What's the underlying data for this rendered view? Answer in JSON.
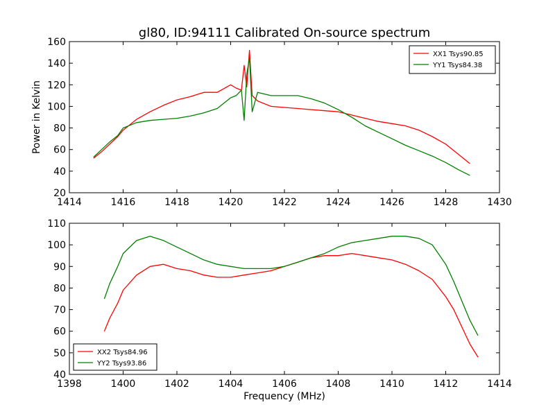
{
  "figure": {
    "title": "gl80, ID:94111 Calibrated On-source spectrum"
  },
  "chart_data": [
    {
      "type": "line",
      "title": "gl80, ID:94111 Calibrated On-source spectrum",
      "xlabel": "",
      "ylabel": "Power in Kelvin",
      "xlim": [
        1414,
        1430
      ],
      "ylim": [
        20,
        160
      ],
      "xticks": [
        1414,
        1416,
        1418,
        1420,
        1422,
        1424,
        1426,
        1428,
        1430
      ],
      "yticks": [
        20,
        40,
        60,
        80,
        100,
        120,
        140,
        160
      ],
      "grid": false,
      "legend_position": "top-right",
      "series": [
        {
          "name": "XX1 Tsys90.85",
          "color": "#ff0000",
          "x": [
            1414.9,
            1415.2,
            1415.5,
            1415.8,
            1416.0,
            1416.5,
            1417.0,
            1417.5,
            1418.0,
            1418.5,
            1419.0,
            1419.5,
            1420.0,
            1420.2,
            1420.4,
            1420.5,
            1420.6,
            1420.7,
            1420.8,
            1421.0,
            1421.5,
            1422.0,
            1422.5,
            1423.0,
            1423.5,
            1424.0,
            1424.5,
            1425.0,
            1425.5,
            1426.0,
            1426.5,
            1427.0,
            1427.5,
            1428.0,
            1428.5,
            1428.9
          ],
          "y": [
            52,
            58,
            65,
            72,
            78,
            88,
            95,
            101,
            106,
            109,
            113,
            113,
            120,
            117,
            115,
            138,
            118,
            152,
            110,
            105,
            100,
            99,
            98,
            97,
            96,
            95,
            92,
            89,
            86,
            84,
            82,
            78,
            72,
            65,
            55,
            47
          ]
        },
        {
          "name": "YY1 Tsys84.38",
          "color": "#008000",
          "x": [
            1414.9,
            1415.2,
            1415.5,
            1415.8,
            1416.0,
            1416.5,
            1417.0,
            1417.5,
            1418.0,
            1418.5,
            1419.0,
            1419.5,
            1420.0,
            1420.2,
            1420.4,
            1420.5,
            1420.6,
            1420.7,
            1420.8,
            1421.0,
            1421.5,
            1422.0,
            1422.5,
            1423.0,
            1423.5,
            1424.0,
            1424.5,
            1425.0,
            1425.5,
            1426.0,
            1426.5,
            1427.0,
            1427.5,
            1428.0,
            1428.5,
            1428.9
          ],
          "y": [
            53,
            60,
            67,
            73,
            80,
            85,
            87,
            88,
            89,
            91,
            94,
            98,
            108,
            110,
            115,
            87,
            130,
            145,
            95,
            113,
            110,
            110,
            110,
            107,
            103,
            97,
            90,
            82,
            76,
            70,
            64,
            59,
            54,
            48,
            41,
            36
          ]
        }
      ]
    },
    {
      "type": "line",
      "title": "",
      "xlabel": "Frequency (MHz)",
      "ylabel": "",
      "xlim": [
        1398,
        1414
      ],
      "ylim": [
        40,
        110
      ],
      "xticks": [
        1398,
        1400,
        1402,
        1404,
        1406,
        1408,
        1410,
        1412,
        1414
      ],
      "yticks": [
        40,
        50,
        60,
        70,
        80,
        90,
        100,
        110
      ],
      "grid": false,
      "legend_position": "bottom-left",
      "series": [
        {
          "name": "XX2 Tsys84.96",
          "color": "#ff0000",
          "x": [
            1399.3,
            1399.5,
            1399.8,
            1400.0,
            1400.5,
            1401.0,
            1401.5,
            1402.0,
            1402.5,
            1403.0,
            1403.5,
            1404.0,
            1404.5,
            1405.0,
            1405.5,
            1406.0,
            1406.5,
            1407.0,
            1407.5,
            1408.0,
            1408.5,
            1409.0,
            1409.5,
            1410.0,
            1410.5,
            1411.0,
            1411.5,
            1412.0,
            1412.3,
            1412.6,
            1412.9,
            1413.2
          ],
          "y": [
            60,
            66,
            73,
            79,
            86,
            90,
            91,
            89,
            88,
            86,
            85,
            85,
            86,
            87,
            88,
            90,
            92,
            94,
            95,
            95,
            96,
            95,
            94,
            93,
            91,
            88,
            84,
            76,
            70,
            62,
            54,
            48
          ]
        },
        {
          "name": "YY2 Tsys93.86",
          "color": "#008000",
          "x": [
            1399.3,
            1399.5,
            1399.8,
            1400.0,
            1400.5,
            1401.0,
            1401.5,
            1402.0,
            1402.5,
            1403.0,
            1403.5,
            1404.0,
            1404.5,
            1405.0,
            1405.5,
            1406.0,
            1406.5,
            1407.0,
            1407.5,
            1408.0,
            1408.5,
            1409.0,
            1409.5,
            1410.0,
            1410.5,
            1411.0,
            1411.5,
            1412.0,
            1412.3,
            1412.6,
            1412.9,
            1413.2
          ],
          "y": [
            75,
            82,
            90,
            96,
            102,
            104,
            102,
            99,
            96,
            93,
            91,
            90,
            89,
            89,
            89,
            90,
            92,
            94,
            96,
            99,
            101,
            102,
            103,
            104,
            104,
            103,
            100,
            91,
            83,
            74,
            65,
            58
          ]
        }
      ]
    }
  ]
}
